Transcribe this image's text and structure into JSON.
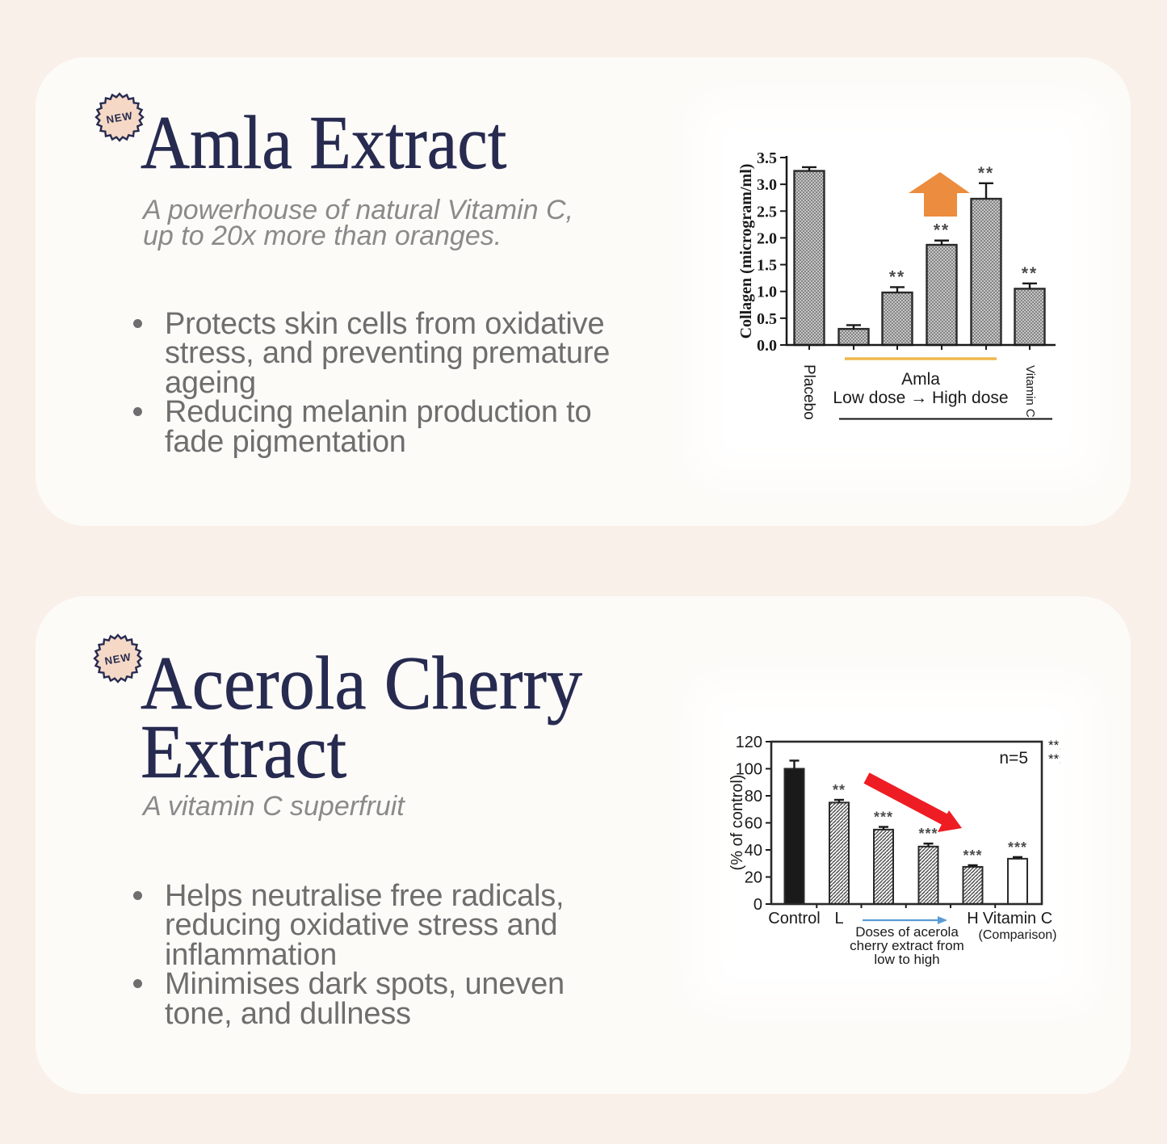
{
  "page": {
    "background_color": "#f9f0ea",
    "card_color": "#fdfbf8",
    "accent_navy": "#272b50"
  },
  "cards": [
    {
      "badge": "NEW",
      "title_lines": [
        "Amla Extract"
      ],
      "subtitle_lines": [
        "A powerhouse of natural Vitamin C,",
        "up to 20x more than oranges."
      ],
      "bullets": [
        {
          "lines": [
            "Protects skin cells from oxidative",
            "stress, and preventing premature",
            "ageing"
          ]
        },
        {
          "lines": [
            "Reducing melanin production to",
            "fade pigmentation"
          ]
        }
      ]
    },
    {
      "badge": "NEW",
      "title_lines": [
        "Acerola Cherry",
        "Extract"
      ],
      "subtitle_lines": [
        "A vitamin C superfruit"
      ],
      "bullets": [
        {
          "lines": [
            "Helps neutralise free radicals,",
            "reducing oxidative stress and",
            "inflammation"
          ]
        },
        {
          "lines": [
            "Minimises dark spots, uneven",
            "tone, and dullness"
          ]
        }
      ]
    }
  ],
  "chart_data": [
    {
      "type": "bar",
      "title": "",
      "ylabel": "Collagen (microgram/ml)",
      "xlabel": "",
      "ylim": [
        0,
        3.5
      ],
      "ytick_labels": [
        "0.0",
        "0.5",
        "1.0",
        "1.5",
        "2.0",
        "2.5",
        "3.0",
        "3.5"
      ],
      "categories": [
        "Placebo",
        "",
        "",
        "",
        "",
        "Vitamin C"
      ],
      "values": [
        3.25,
        0.3,
        0.98,
        1.87,
        2.73,
        1.05
      ],
      "errors": [
        0.07,
        0.07,
        0.1,
        0.08,
        0.29,
        0.1
      ],
      "significance": [
        "",
        "",
        "**",
        "**",
        "**",
        "**"
      ],
      "bar_styles": [
        "hatch",
        "hatch",
        "hatch",
        "hatch",
        "hatch",
        "hatch"
      ],
      "group_label_lines": [
        "Amla",
        "Low dose → High dose"
      ],
      "grid": false,
      "legend": false,
      "annotation_colors": {
        "up_arrow": "#ec8c3e",
        "dose_underline": "#f0c04c"
      }
    },
    {
      "type": "bar",
      "title": "",
      "ylabel": "(% of control)",
      "xlabel": "",
      "ylim": [
        0,
        120
      ],
      "ytick_labels": [
        "0",
        "20",
        "40",
        "60",
        "80",
        "100",
        "120"
      ],
      "categories": [
        "Control",
        "L",
        "",
        "",
        "H",
        "Vitamin C"
      ],
      "category_sublabels": [
        "",
        "",
        "",
        "",
        "",
        "(Comparison)"
      ],
      "values": [
        100,
        75,
        55,
        42.5,
        27.5,
        33.5
      ],
      "errors": [
        6,
        2,
        2,
        2.2,
        1.2,
        1.2
      ],
      "significance": [
        "",
        "**",
        "***",
        "***",
        "***",
        "***"
      ],
      "bar_styles": [
        "solid",
        "hatch",
        "hatch",
        "hatch",
        "hatch",
        "open"
      ],
      "sample_size_label": "n=5",
      "dose_caption_lines": [
        "Doses of acerola",
        "cherry extract from",
        "low to high"
      ],
      "legend_clipped_lines": [
        "**,",
        "**:"
      ],
      "grid": false,
      "legend": false,
      "annotation_colors": {
        "down_arrow": "#ee1c23",
        "dose_axis_arrow": "#5b9bd5"
      }
    }
  ]
}
